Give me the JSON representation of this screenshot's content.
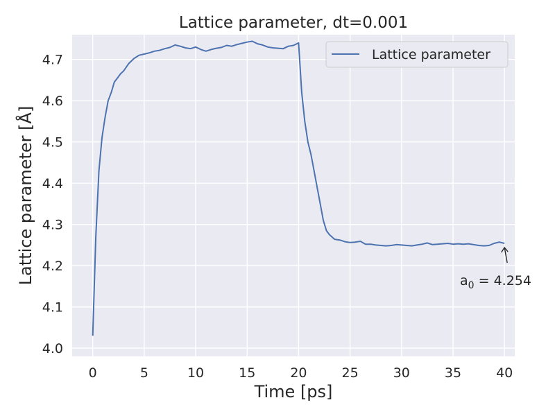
{
  "chart_data": {
    "type": "line",
    "title": "Lattice parameter, dt=0.001",
    "xlabel": "Time [ps]",
    "ylabel": "Lattice parameter [Å]",
    "xlim": [
      -2,
      41
    ],
    "ylim": [
      3.98,
      4.76
    ],
    "xticks": [
      "0",
      "5",
      "10",
      "15",
      "20",
      "25",
      "30",
      "35",
      "40"
    ],
    "yticks": [
      "4.0",
      "4.1",
      "4.2",
      "4.3",
      "4.4",
      "4.5",
      "4.6",
      "4.7"
    ],
    "grid": true,
    "legend_position": "top-right",
    "colors": {
      "series": "#4c72b0",
      "background": "#eaeaf2",
      "grid": "#ffffff",
      "text": "#262626"
    },
    "series": [
      {
        "name": "Lattice parameter",
        "x": [
          0,
          0.3,
          0.6,
          0.9,
          1.2,
          1.5,
          1.8,
          2.1,
          2.4,
          2.7,
          3.0,
          3.5,
          4.0,
          4.5,
          5.0,
          5.5,
          6.0,
          6.5,
          7.0,
          7.5,
          8.0,
          8.5,
          9.0,
          9.5,
          10.0,
          10.5,
          11.0,
          11.5,
          12.0,
          12.5,
          13.0,
          13.5,
          14.0,
          14.5,
          15.0,
          15.5,
          16.0,
          16.5,
          17.0,
          17.5,
          18.0,
          18.5,
          19.0,
          19.5,
          20.0,
          20.3,
          20.6,
          20.9,
          21.2,
          21.5,
          21.8,
          22.1,
          22.4,
          22.7,
          23.0,
          23.5,
          24.0,
          24.5,
          25.0,
          25.5,
          26.0,
          26.5,
          27.0,
          27.5,
          28.0,
          28.5,
          29.0,
          29.5,
          30.0,
          30.5,
          31.0,
          31.5,
          32.0,
          32.5,
          33.0,
          33.5,
          34.0,
          34.5,
          35.0,
          35.5,
          36.0,
          36.5,
          37.0,
          37.5,
          38.0,
          38.5,
          39.0,
          39.5,
          40.0
        ],
        "y": [
          4.03,
          4.27,
          4.43,
          4.51,
          4.56,
          4.6,
          4.62,
          4.645,
          4.655,
          4.665,
          4.672,
          4.69,
          4.702,
          4.71,
          4.713,
          4.716,
          4.72,
          4.722,
          4.726,
          4.729,
          4.735,
          4.732,
          4.728,
          4.726,
          4.73,
          4.724,
          4.72,
          4.724,
          4.727,
          4.729,
          4.734,
          4.732,
          4.736,
          4.739,
          4.742,
          4.744,
          4.738,
          4.735,
          4.73,
          4.728,
          4.727,
          4.726,
          4.732,
          4.734,
          4.74,
          4.62,
          4.55,
          4.5,
          4.47,
          4.43,
          4.39,
          4.35,
          4.31,
          4.285,
          4.275,
          4.264,
          4.262,
          4.258,
          4.256,
          4.257,
          4.259,
          4.252,
          4.252,
          4.25,
          4.249,
          4.248,
          4.249,
          4.251,
          4.25,
          4.249,
          4.248,
          4.25,
          4.252,
          4.255,
          4.251,
          4.252,
          4.253,
          4.254,
          4.252,
          4.253,
          4.252,
          4.253,
          4.251,
          4.249,
          4.248,
          4.249,
          4.254,
          4.257,
          4.254
        ]
      }
    ],
    "annotation": {
      "text_base": "a",
      "text_sub": "0",
      "text_rest": " = 4.254",
      "point_x": 40,
      "point_y": 4.254
    }
  }
}
